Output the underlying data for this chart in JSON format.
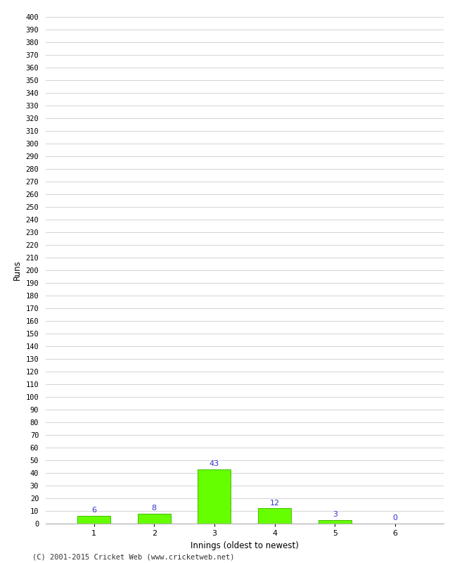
{
  "categories": [
    1,
    2,
    3,
    4,
    5,
    6
  ],
  "values": [
    6,
    8,
    43,
    12,
    3,
    0
  ],
  "bar_color": "#66ff00",
  "bar_edge_color": "#44bb00",
  "xlabel": "Innings (oldest to newest)",
  "ylabel": "Runs",
  "ylim": [
    0,
    400
  ],
  "ytick_step": 10,
  "label_color": "#3333cc",
  "footer": "(C) 2001-2015 Cricket Web (www.cricketweb.net)",
  "background_color": "#ffffff",
  "grid_color": "#cccccc",
  "label_fontsize": 8,
  "tick_fontsize": 7.5,
  "footer_fontsize": 7.5
}
